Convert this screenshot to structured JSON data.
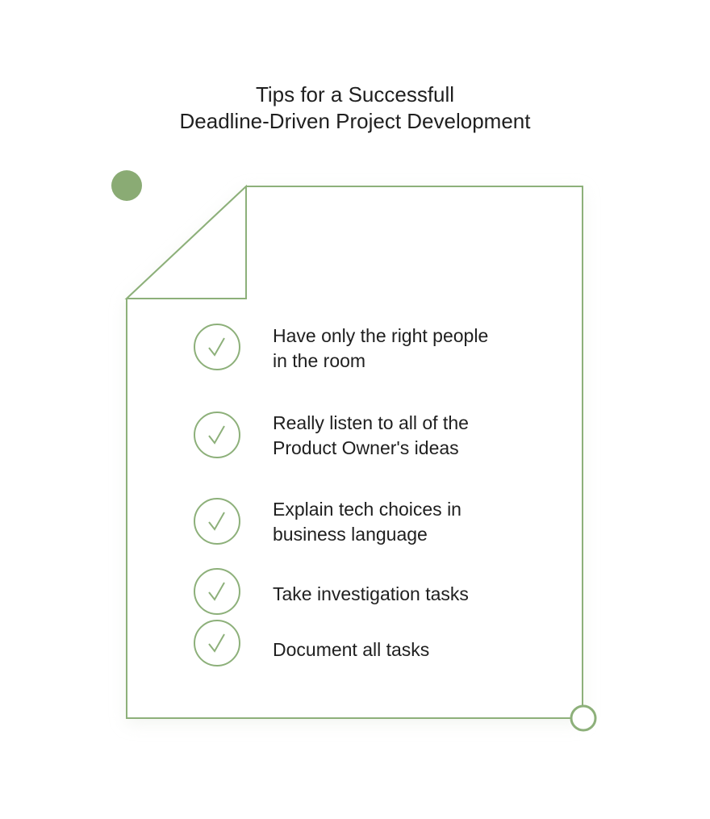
{
  "title": {
    "line1": "Tips for a Successfull",
    "line2": "Deadline-Driven Project Development"
  },
  "colors": {
    "accent": "#8aab74",
    "outline": "#8db07a",
    "text": "#1f1f1f"
  },
  "tips": [
    {
      "line1": "Have only the right people",
      "line2": "in the room",
      "icon": "checkmark-icon"
    },
    {
      "line1": "Really listen to all of the",
      "line2": "Product Owner's ideas",
      "icon": "checkmark-icon"
    },
    {
      "line1": "Explain tech choices in",
      "line2": "business language",
      "icon": "checkmark-icon"
    },
    {
      "line1": "Take investigation tasks",
      "icon": "checkmark-icon"
    },
    {
      "line1": "Document all tasks",
      "icon": "checkmark-icon"
    }
  ]
}
